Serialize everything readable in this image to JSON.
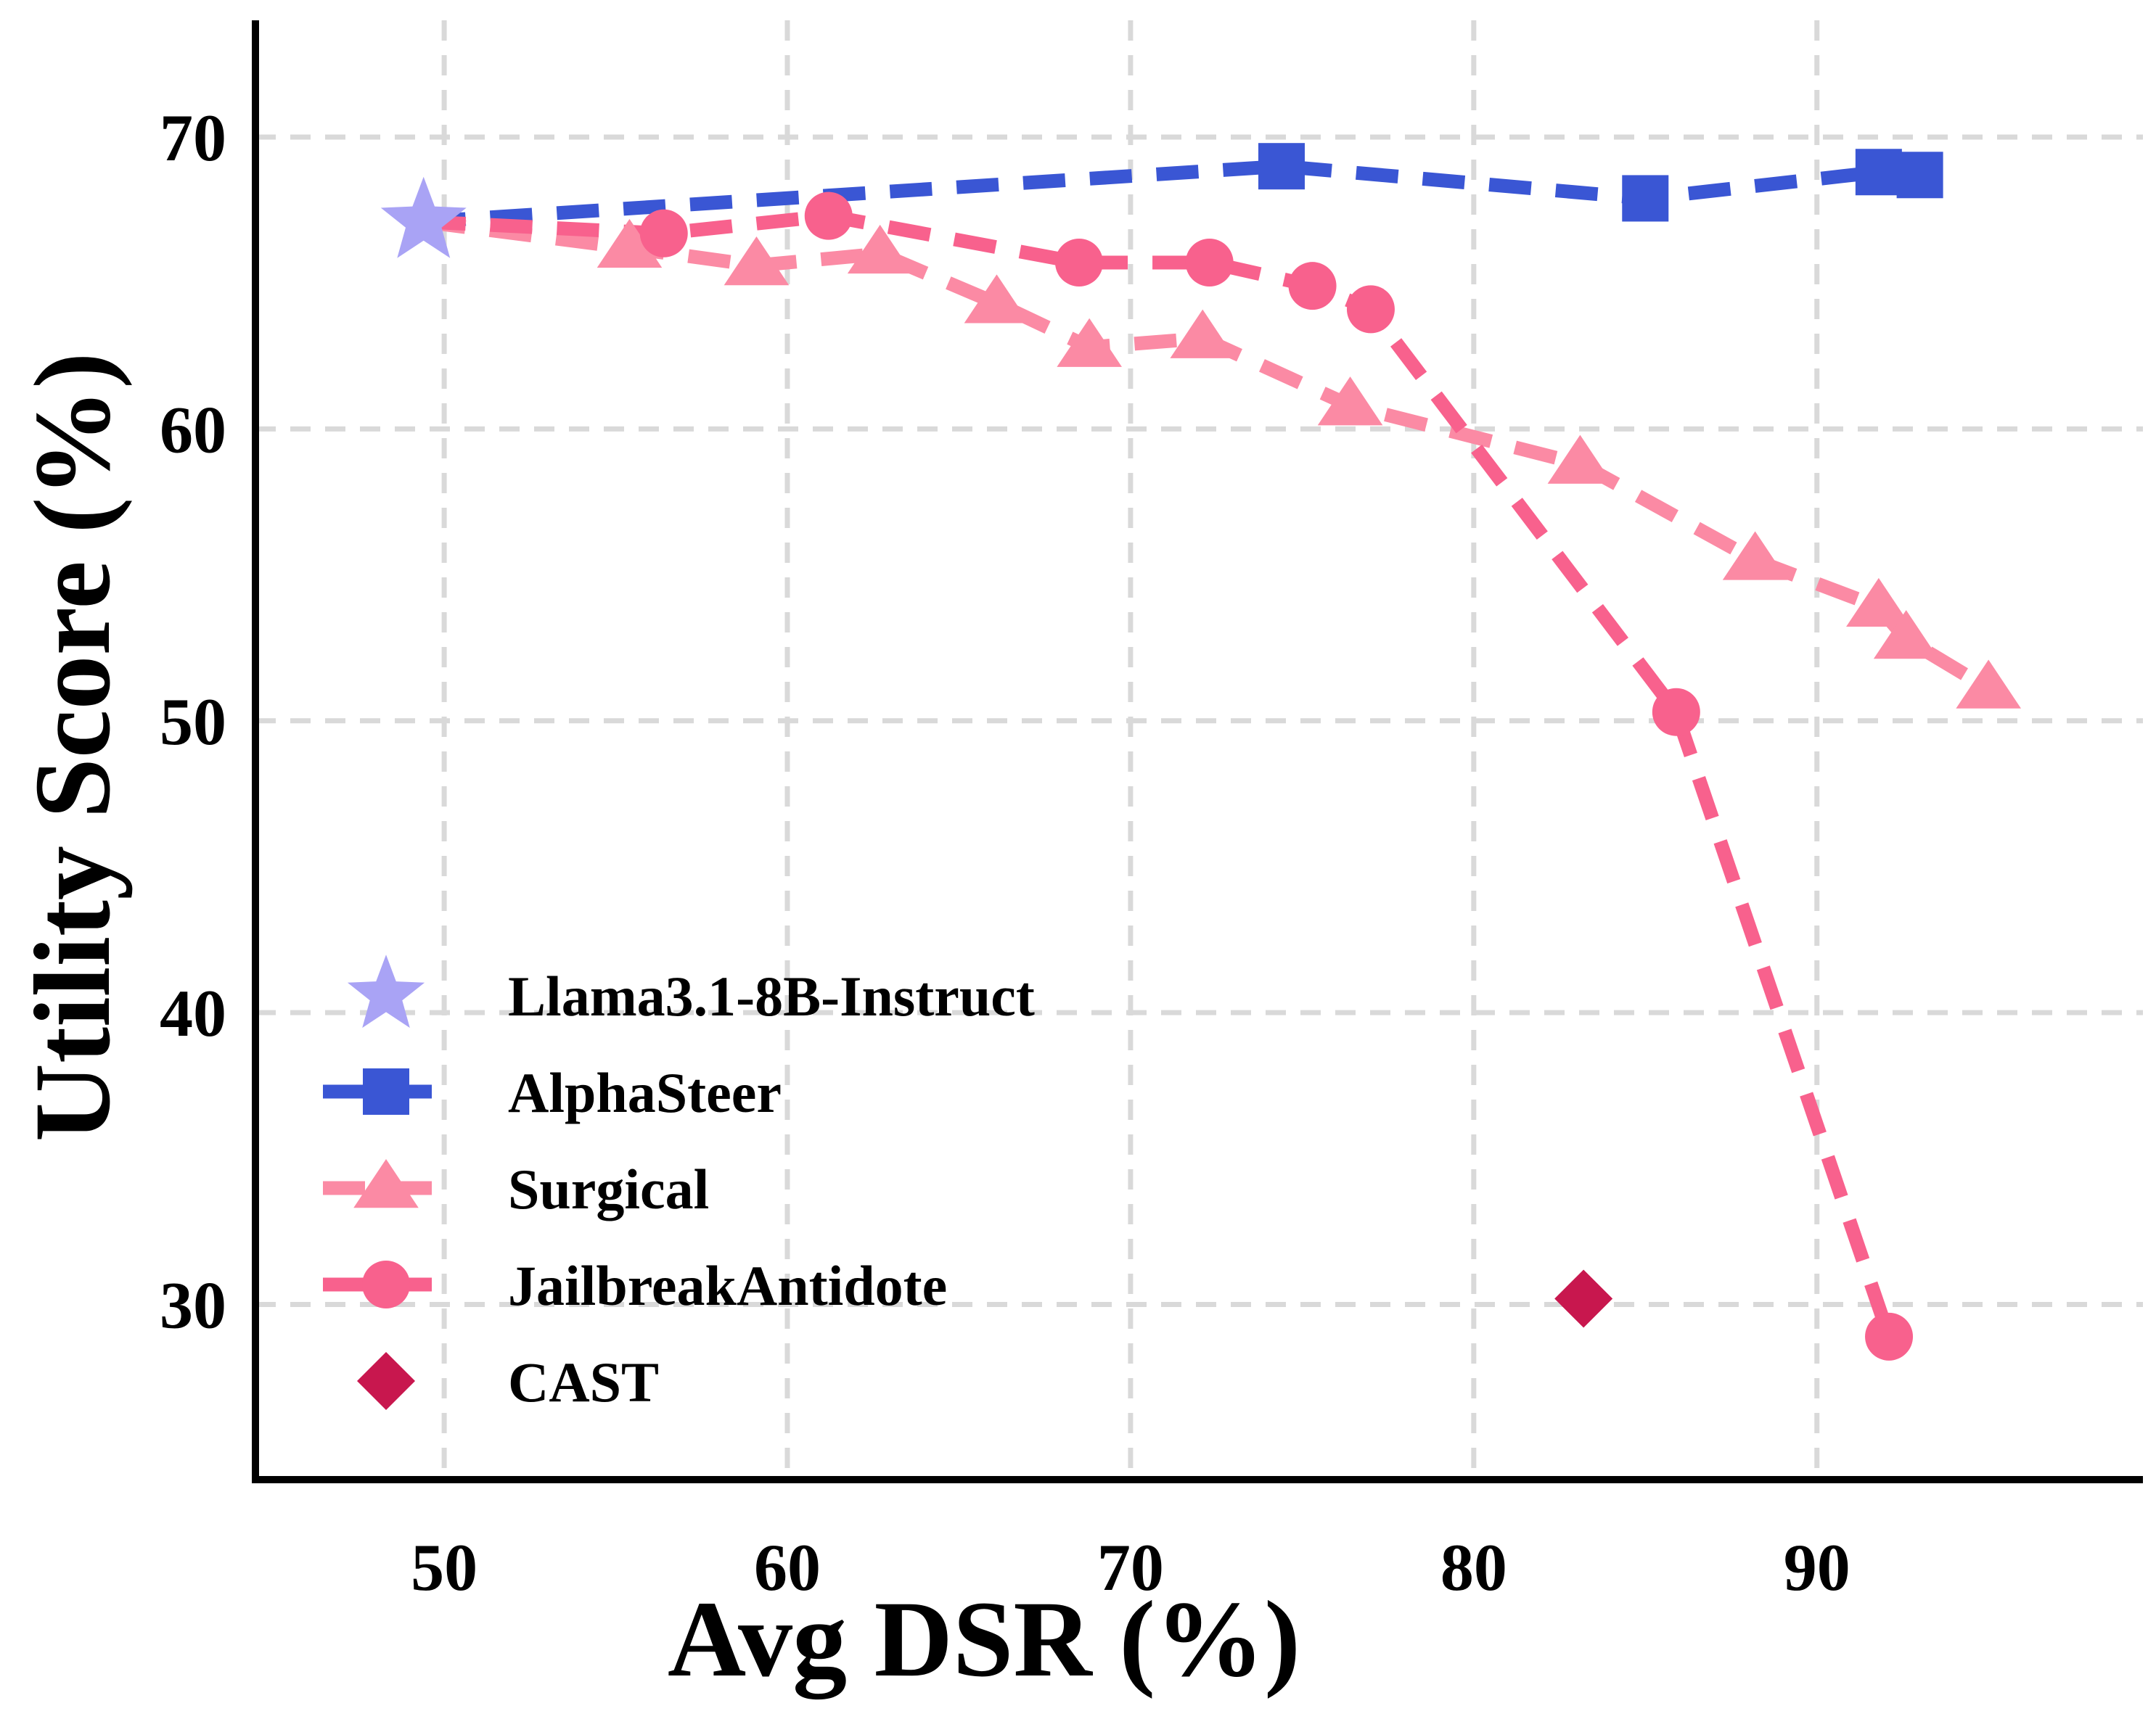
{
  "chart_data": {
    "type": "line",
    "xlabel": "Avg DSR (%)",
    "ylabel": "Utility Score (%)",
    "xlim": [
      44.5,
      99.5
    ],
    "ylim": [
      24,
      74
    ],
    "xticks": [
      50,
      60,
      70,
      80,
      90
    ],
    "yticks": [
      30,
      40,
      50,
      60,
      70
    ],
    "grid": true,
    "legend_position": "lower-left",
    "series": [
      {
        "name": "Llama3.1-8B-Instruct",
        "marker": "star",
        "line": "none",
        "color": "#a9a3f5",
        "x": [
          49.4
        ],
        "y": [
          67.1
        ]
      },
      {
        "name": "AlphaSteer",
        "marker": "square",
        "line": "dashed",
        "color": "#3a56d4",
        "x": [
          49.4,
          74.4,
          85.0,
          91.8,
          93.0
        ],
        "y": [
          67.1,
          69.0,
          67.9,
          68.8,
          68.7
        ]
      },
      {
        "name": "Surgical",
        "marker": "triangle",
        "line": "dashed",
        "color": "#fb8aa4",
        "x": [
          49.4,
          55.4,
          59.1,
          62.7,
          66.1,
          68.8,
          72.1,
          76.4,
          83.1,
          88.2,
          91.8,
          92.6,
          95.0
        ],
        "y": [
          67.1,
          66.2,
          65.6,
          66.0,
          64.3,
          62.8,
          63.1,
          60.8,
          58.8,
          55.5,
          53.9,
          52.8,
          51.1
        ]
      },
      {
        "name": "JailbreakAntidote",
        "marker": "circle",
        "line": "dashed",
        "color": "#f8618d",
        "x": [
          49.4,
          56.4,
          61.2,
          68.5,
          72.3,
          75.3,
          77.0,
          85.9,
          92.1
        ],
        "y": [
          67.1,
          66.7,
          67.3,
          65.7,
          65.7,
          64.9,
          64.1,
          50.3,
          28.9
        ]
      },
      {
        "name": "CAST",
        "marker": "diamond",
        "line": "none",
        "color": "#c8174e",
        "x": [
          83.2
        ],
        "y": [
          30.2
        ]
      }
    ]
  }
}
